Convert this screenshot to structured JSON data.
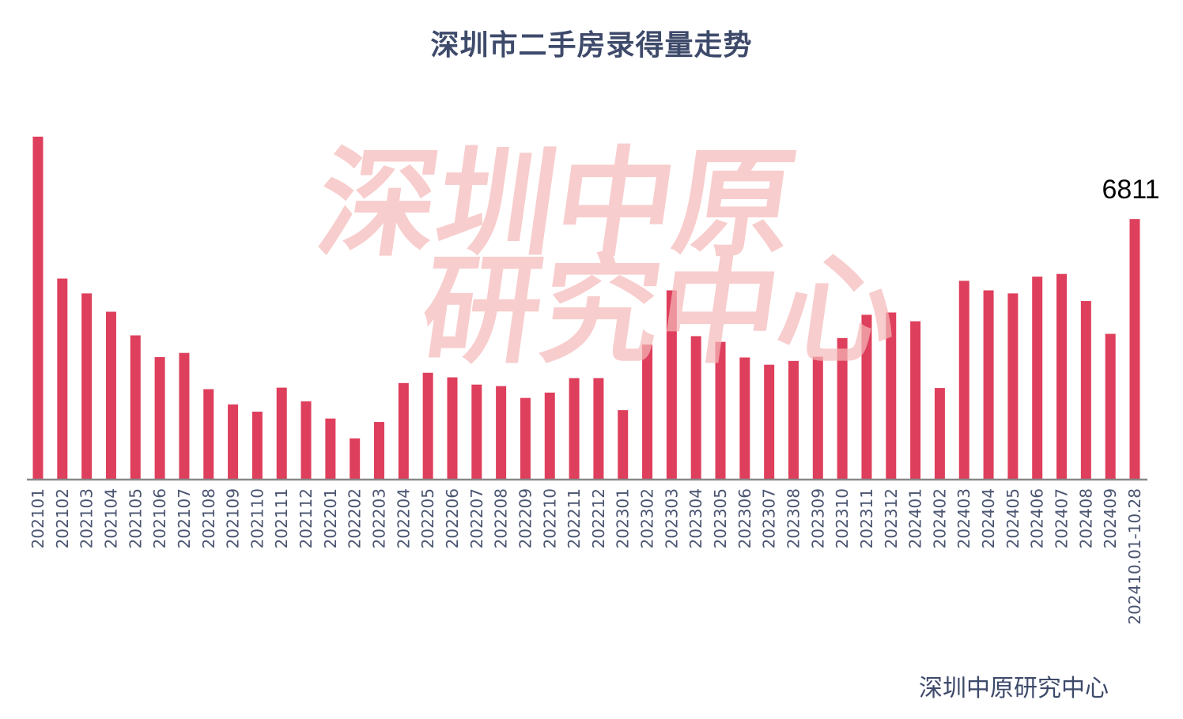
{
  "chart_data": {
    "type": "bar",
    "title": "深圳市二手房录得量走势",
    "xlabel": "",
    "ylabel": "",
    "ylim": [
      0,
      9300
    ],
    "grid": false,
    "bar_color": "#de3f5c",
    "categories": [
      "202101",
      "202102",
      "202103",
      "202104",
      "202105",
      "202106",
      "202107",
      "202108",
      "202109",
      "202110",
      "202111",
      "202112",
      "202201",
      "202202",
      "202203",
      "202204",
      "202205",
      "202206",
      "202207",
      "202208",
      "202209",
      "202210",
      "202211",
      "202212",
      "202301",
      "202302",
      "202303",
      "202304",
      "202305",
      "202306",
      "202307",
      "202308",
      "202309",
      "202310",
      "202311",
      "202312",
      "202401",
      "202402",
      "202403",
      "202404",
      "202405",
      "202406",
      "202407",
      "202408",
      "202409",
      "202410.01-10.28"
    ],
    "values": [
      8970,
      5250,
      4860,
      4380,
      3760,
      3190,
      3300,
      2350,
      1950,
      1760,
      2390,
      2030,
      1580,
      1060,
      1490,
      2510,
      2780,
      2660,
      2470,
      2430,
      2120,
      2260,
      2640,
      2640,
      1800,
      3520,
      4940,
      3740,
      3590,
      3180,
      2990,
      3090,
      3200,
      3690,
      4300,
      4360,
      4130,
      2380,
      5190,
      4940,
      4860,
      5300,
      5370,
      4660,
      3800,
      6811
    ],
    "data_labels": [
      {
        "category": "202410.01-10.28",
        "text": "6811"
      }
    ]
  },
  "watermark": {
    "line1": "深圳中原",
    "line2": "研究中心",
    "color": "#f6b9b9"
  },
  "source": "深圳中原研究中心"
}
